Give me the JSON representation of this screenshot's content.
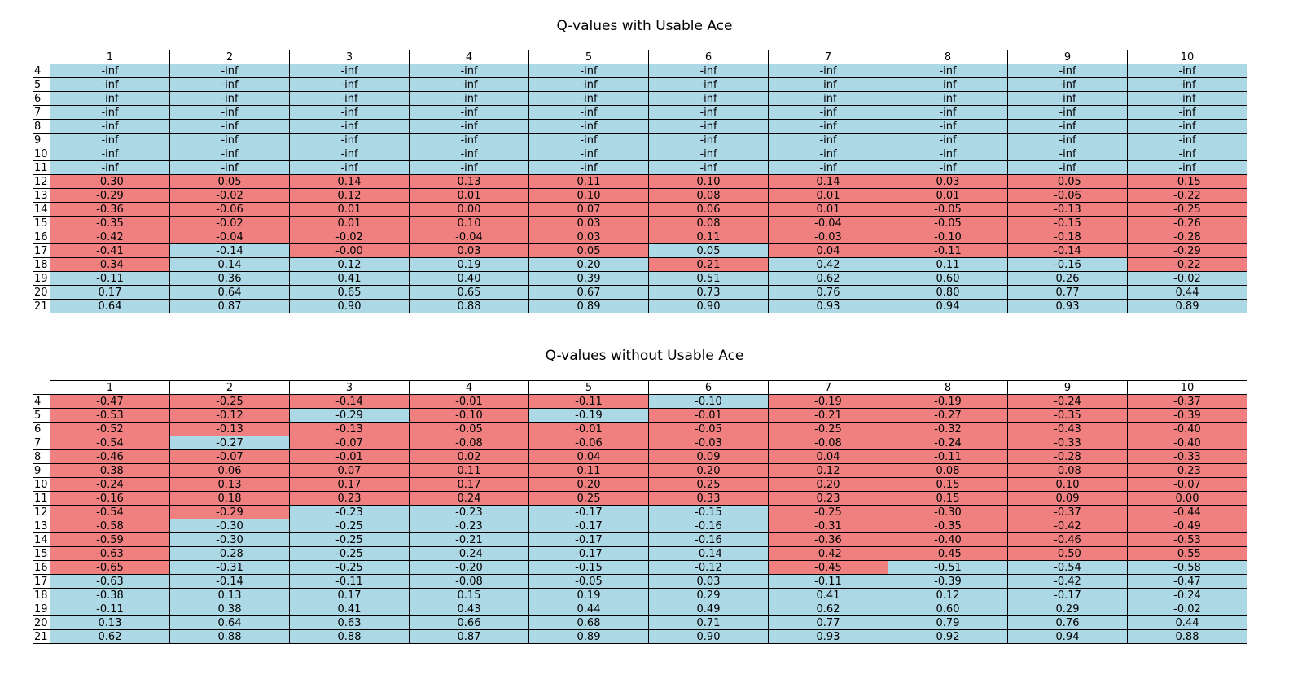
{
  "colors": {
    "stick": "#add8e6",
    "hit": "#f08080"
  },
  "chart_data": [
    {
      "type": "table",
      "title": "Q-values with Usable Ace",
      "columns": [
        "1",
        "2",
        "3",
        "4",
        "5",
        "6",
        "7",
        "8",
        "9",
        "10"
      ],
      "rows": [
        "4",
        "5",
        "6",
        "7",
        "8",
        "9",
        "10",
        "11",
        "12",
        "13",
        "14",
        "15",
        "16",
        "17",
        "18",
        "19",
        "20",
        "21"
      ],
      "values": [
        [
          "-inf",
          "-inf",
          "-inf",
          "-inf",
          "-inf",
          "-inf",
          "-inf",
          "-inf",
          "-inf",
          "-inf"
        ],
        [
          "-inf",
          "-inf",
          "-inf",
          "-inf",
          "-inf",
          "-inf",
          "-inf",
          "-inf",
          "-inf",
          "-inf"
        ],
        [
          "-inf",
          "-inf",
          "-inf",
          "-inf",
          "-inf",
          "-inf",
          "-inf",
          "-inf",
          "-inf",
          "-inf"
        ],
        [
          "-inf",
          "-inf",
          "-inf",
          "-inf",
          "-inf",
          "-inf",
          "-inf",
          "-inf",
          "-inf",
          "-inf"
        ],
        [
          "-inf",
          "-inf",
          "-inf",
          "-inf",
          "-inf",
          "-inf",
          "-inf",
          "-inf",
          "-inf",
          "-inf"
        ],
        [
          "-inf",
          "-inf",
          "-inf",
          "-inf",
          "-inf",
          "-inf",
          "-inf",
          "-inf",
          "-inf",
          "-inf"
        ],
        [
          "-inf",
          "-inf",
          "-inf",
          "-inf",
          "-inf",
          "-inf",
          "-inf",
          "-inf",
          "-inf",
          "-inf"
        ],
        [
          "-inf",
          "-inf",
          "-inf",
          "-inf",
          "-inf",
          "-inf",
          "-inf",
          "-inf",
          "-inf",
          "-inf"
        ],
        [
          "-0.30",
          "0.05",
          "0.14",
          "0.13",
          "0.11",
          "0.10",
          "0.14",
          "0.03",
          "-0.05",
          "-0.15"
        ],
        [
          "-0.29",
          "-0.02",
          "0.12",
          "0.01",
          "0.10",
          "0.08",
          "0.01",
          "0.01",
          "-0.06",
          "-0.22"
        ],
        [
          "-0.36",
          "-0.06",
          "0.01",
          "0.00",
          "0.07",
          "0.06",
          "0.01",
          "-0.05",
          "-0.13",
          "-0.25"
        ],
        [
          "-0.35",
          "-0.02",
          "0.01",
          "0.10",
          "0.03",
          "0.08",
          "-0.04",
          "-0.05",
          "-0.15",
          "-0.26"
        ],
        [
          "-0.42",
          "-0.04",
          "-0.02",
          "-0.04",
          "0.03",
          "0.11",
          "-0.03",
          "-0.10",
          "-0.18",
          "-0.28"
        ],
        [
          "-0.41",
          "-0.14",
          "-0.00",
          "0.03",
          "0.05",
          "0.05",
          "0.04",
          "-0.11",
          "-0.14",
          "-0.29"
        ],
        [
          "-0.34",
          "0.14",
          "0.12",
          "0.19",
          "0.20",
          "0.21",
          "0.42",
          "0.11",
          "-0.16",
          "-0.22"
        ],
        [
          "-0.11",
          "0.36",
          "0.41",
          "0.40",
          "0.39",
          "0.51",
          "0.62",
          "0.60",
          "0.26",
          "-0.02"
        ],
        [
          "0.17",
          "0.64",
          "0.65",
          "0.65",
          "0.67",
          "0.73",
          "0.76",
          "0.80",
          "0.77",
          "0.44"
        ],
        [
          "0.64",
          "0.87",
          "0.90",
          "0.88",
          "0.89",
          "0.90",
          "0.93",
          "0.94",
          "0.93",
          "0.89"
        ]
      ],
      "cell_colors": [
        "SSSSSSSSSS",
        "SSSSSSSSSS",
        "SSSSSSSSSS",
        "SSSSSSSSSS",
        "SSSSSSSSSS",
        "SSSSSSSSSS",
        "SSSSSSSSSS",
        "SSSSSSSSSS",
        "HHHHHHHHHH",
        "HHHHHHHHHH",
        "HHHHHHHHHH",
        "HHHHHHHHHH",
        "HHHHHHHHHH",
        "HSHHHSHHHH",
        "HSSSSHSSSH",
        "SSSSSSSSSS",
        "SSSSSSSSSS",
        "SSSSSSSSSS"
      ]
    },
    {
      "type": "table",
      "title": "Q-values without Usable Ace",
      "columns": [
        "1",
        "2",
        "3",
        "4",
        "5",
        "6",
        "7",
        "8",
        "9",
        "10"
      ],
      "rows": [
        "4",
        "5",
        "6",
        "7",
        "8",
        "9",
        "10",
        "11",
        "12",
        "13",
        "14",
        "15",
        "16",
        "17",
        "18",
        "19",
        "20",
        "21"
      ],
      "values": [
        [
          "-0.47",
          "-0.25",
          "-0.14",
          "-0.01",
          "-0.11",
          "-0.10",
          "-0.19",
          "-0.19",
          "-0.24",
          "-0.37"
        ],
        [
          "-0.53",
          "-0.12",
          "-0.29",
          "-0.10",
          "-0.19",
          "-0.01",
          "-0.21",
          "-0.27",
          "-0.35",
          "-0.39"
        ],
        [
          "-0.52",
          "-0.13",
          "-0.13",
          "-0.05",
          "-0.01",
          "-0.05",
          "-0.25",
          "-0.32",
          "-0.43",
          "-0.40"
        ],
        [
          "-0.54",
          "-0.27",
          "-0.07",
          "-0.08",
          "-0.06",
          "-0.03",
          "-0.08",
          "-0.24",
          "-0.33",
          "-0.40"
        ],
        [
          "-0.46",
          "-0.07",
          "-0.01",
          "0.02",
          "0.04",
          "0.09",
          "0.04",
          "-0.11",
          "-0.28",
          "-0.33"
        ],
        [
          "-0.38",
          "0.06",
          "0.07",
          "0.11",
          "0.11",
          "0.20",
          "0.12",
          "0.08",
          "-0.08",
          "-0.23"
        ],
        [
          "-0.24",
          "0.13",
          "0.17",
          "0.17",
          "0.20",
          "0.25",
          "0.20",
          "0.15",
          "0.10",
          "-0.07"
        ],
        [
          "-0.16",
          "0.18",
          "0.23",
          "0.24",
          "0.25",
          "0.33",
          "0.23",
          "0.15",
          "0.09",
          "0.00"
        ],
        [
          "-0.54",
          "-0.29",
          "-0.23",
          "-0.23",
          "-0.17",
          "-0.15",
          "-0.25",
          "-0.30",
          "-0.37",
          "-0.44"
        ],
        [
          "-0.58",
          "-0.30",
          "-0.25",
          "-0.23",
          "-0.17",
          "-0.16",
          "-0.31",
          "-0.35",
          "-0.42",
          "-0.49"
        ],
        [
          "-0.59",
          "-0.30",
          "-0.25",
          "-0.21",
          "-0.17",
          "-0.16",
          "-0.36",
          "-0.40",
          "-0.46",
          "-0.53"
        ],
        [
          "-0.63",
          "-0.28",
          "-0.25",
          "-0.24",
          "-0.17",
          "-0.14",
          "-0.42",
          "-0.45",
          "-0.50",
          "-0.55"
        ],
        [
          "-0.65",
          "-0.31",
          "-0.25",
          "-0.20",
          "-0.15",
          "-0.12",
          "-0.45",
          "-0.51",
          "-0.54",
          "-0.58"
        ],
        [
          "-0.63",
          "-0.14",
          "-0.11",
          "-0.08",
          "-0.05",
          "0.03",
          "-0.11",
          "-0.39",
          "-0.42",
          "-0.47"
        ],
        [
          "-0.38",
          "0.13",
          "0.17",
          "0.15",
          "0.19",
          "0.29",
          "0.41",
          "0.12",
          "-0.17",
          "-0.24"
        ],
        [
          "-0.11",
          "0.38",
          "0.41",
          "0.43",
          "0.44",
          "0.49",
          "0.62",
          "0.60",
          "0.29",
          "-0.02"
        ],
        [
          "0.13",
          "0.64",
          "0.63",
          "0.66",
          "0.68",
          "0.71",
          "0.77",
          "0.79",
          "0.76",
          "0.44"
        ],
        [
          "0.62",
          "0.88",
          "0.88",
          "0.87",
          "0.89",
          "0.90",
          "0.93",
          "0.92",
          "0.94",
          "0.88"
        ]
      ],
      "cell_colors": [
        "HHHHHSHHHH",
        "HHSHSHHHHH",
        "HHHHHHHHHH",
        "HSHHHHHHHH",
        "HHHHHHHHHH",
        "HHHHHHHHHH",
        "HHHHHHHHHH",
        "HHHHHHHHHH",
        "HHSSSSHHHH",
        "HSSSSSHHHH",
        "HSSSSSHHHH",
        "HSSSSSHHHH",
        "HSSSSSHSSS",
        "SSSSSSSSSS",
        "SSSSSSSSSS",
        "SSSSSSSSSS",
        "SSSSSSSSSS",
        "SSSSSSSSSS"
      ]
    }
  ]
}
